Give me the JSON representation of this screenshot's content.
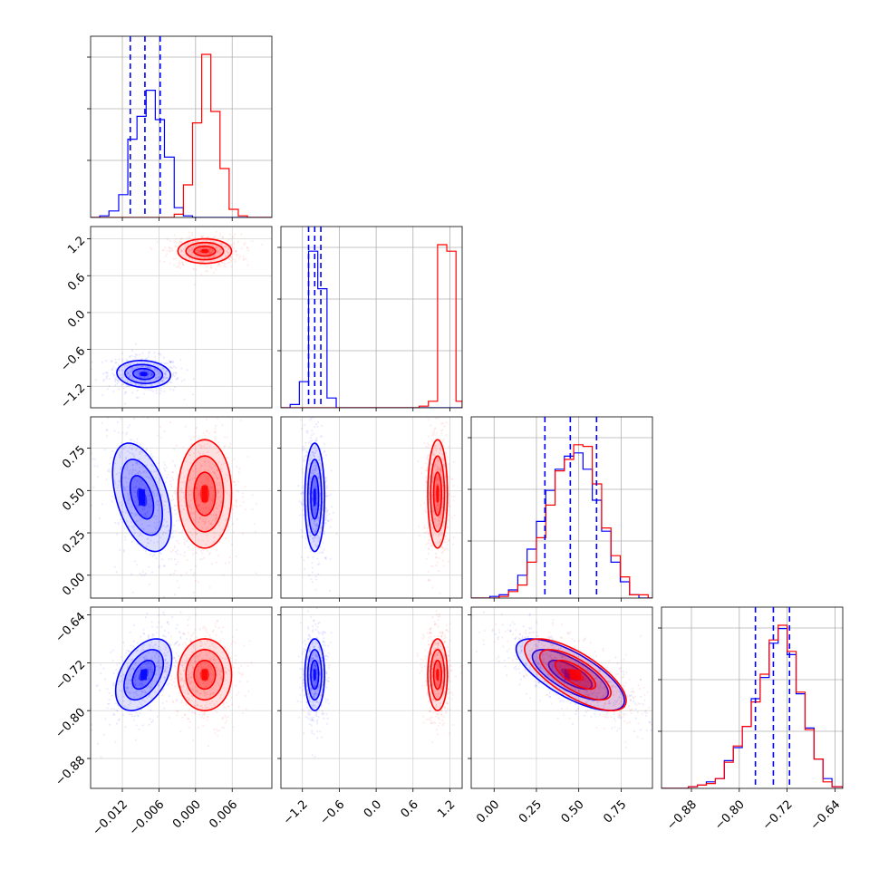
{
  "chart_data": {
    "type": "corner",
    "grid": true,
    "colors": {
      "blue": "#0000ff",
      "red": "#ff0000"
    },
    "series": [
      {
        "color": "#0000ff",
        "quantiles_p1": [
          -0.0107,
          -0.0083,
          -0.0058
        ],
        "quantiles_p4": [
          -0.773,
          -0.743,
          -0.716
        ],
        "means": [
          -0.0085,
          -1.0,
          0.45,
          -0.74
        ]
      },
      {
        "color": "#ff0000",
        "means": [
          0.0015,
          1.0,
          0.48,
          -0.74
        ]
      }
    ],
    "params": [
      {
        "lim": [
          -0.0172,
          0.0125
        ],
        "ticks": [
          -0.012,
          -0.006,
          0.0,
          0.006
        ],
        "tick_labels": [
          "−0.012",
          "−0.006",
          "0.000",
          "0.006"
        ]
      },
      {
        "lim": [
          -1.55,
          1.4
        ],
        "ticks": [
          -1.2,
          -0.6,
          0.0,
          0.6,
          1.2
        ],
        "tick_labels": [
          "−1.2",
          "−0.6",
          "0.0",
          "0.6",
          "1.2"
        ]
      },
      {
        "lim": [
          -0.135,
          0.935
        ],
        "ticks": [
          0.0,
          0.25,
          0.5,
          0.75
        ],
        "tick_labels": [
          "0.00",
          "0.25",
          "0.50",
          "0.75"
        ]
      },
      {
        "lim": [
          -0.93,
          -0.627
        ],
        "ticks": [
          -0.88,
          -0.8,
          -0.72,
          -0.64
        ],
        "tick_labels": [
          "−0.88",
          "−0.80",
          "−0.72",
          "−0.64"
        ]
      }
    ],
    "histograms": [
      {
        "param": 0,
        "edges": [
          -0.0172,
          -0.0157,
          -0.0142,
          -0.0126,
          -0.0111,
          -0.0096,
          -0.0081,
          -0.0066,
          -0.0051,
          -0.0035,
          -0.002,
          -0.0005,
          0.001,
          0.0025,
          0.004,
          0.0055,
          0.007,
          0.0085,
          0.0101,
          0.0116,
          0.0125
        ],
        "blue": [
          0,
          0.01,
          0.04,
          0.14,
          0.48,
          0.62,
          0.78,
          0.6,
          0.37,
          0.06,
          0.01,
          0,
          0,
          0,
          0,
          0,
          0,
          0,
          0,
          0
        ],
        "red": [
          0,
          0,
          0,
          0,
          0,
          0,
          0,
          0,
          0,
          0.02,
          0.2,
          0.58,
          1.0,
          0.65,
          0.3,
          0.05,
          0.01,
          0,
          0,
          0
        ]
      },
      {
        "param": 1,
        "edges": [
          -1.55,
          -1.4,
          -1.25,
          -1.1,
          -0.95,
          -0.8,
          -0.65,
          -0.5,
          -0.35,
          -0.2,
          -0.05,
          0.1,
          0.25,
          0.4,
          0.55,
          0.7,
          0.85,
          1.0,
          1.15,
          1.3,
          1.4
        ],
        "blue": [
          0,
          0.02,
          0.16,
          0.96,
          0.73,
          0.06,
          0,
          0,
          0,
          0,
          0,
          0,
          0,
          0,
          0,
          0,
          0,
          0,
          0,
          0
        ],
        "red": [
          0,
          0,
          0,
          0,
          0,
          0,
          0,
          0,
          0,
          0,
          0,
          0,
          0,
          0,
          0,
          0.01,
          0.04,
          1.0,
          0.96,
          0.04
        ]
      },
      {
        "param": 2,
        "edges": [
          -0.135,
          -0.08,
          -0.025,
          0.03,
          0.085,
          0.14,
          0.195,
          0.25,
          0.305,
          0.36,
          0.415,
          0.47,
          0.525,
          0.58,
          0.635,
          0.69,
          0.745,
          0.8,
          0.855,
          0.91,
          0.935
        ],
        "blue": [
          0,
          0,
          0.01,
          0.02,
          0.05,
          0.14,
          0.3,
          0.47,
          0.66,
          0.79,
          0.87,
          0.89,
          0.79,
          0.6,
          0.41,
          0.22,
          0.1,
          0.02,
          0,
          0
        ],
        "red": [
          0,
          0,
          0,
          0.01,
          0.04,
          0.08,
          0.22,
          0.37,
          0.57,
          0.78,
          0.85,
          0.94,
          0.93,
          0.7,
          0.43,
          0.26,
          0.13,
          0.02,
          0.02,
          0
        ]
      },
      {
        "param": 3,
        "edges": [
          -0.93,
          -0.915,
          -0.9,
          -0.885,
          -0.87,
          -0.855,
          -0.84,
          -0.825,
          -0.81,
          -0.795,
          -0.78,
          -0.765,
          -0.75,
          -0.735,
          -0.72,
          -0.705,
          -0.69,
          -0.675,
          -0.66,
          -0.645,
          -0.627
        ],
        "blue": [
          0,
          0,
          0,
          0.01,
          0.02,
          0.04,
          0.06,
          0.17,
          0.25,
          0.38,
          0.55,
          0.68,
          0.89,
          0.98,
          0.82,
          0.58,
          0.37,
          0.18,
          0.06,
          0.01
        ],
        "red": [
          0,
          0,
          0,
          0.01,
          0.02,
          0.03,
          0.06,
          0.16,
          0.26,
          0.38,
          0.53,
          0.7,
          0.91,
          1.0,
          0.84,
          0.59,
          0.36,
          0.18,
          0.04,
          0.01
        ]
      }
    ],
    "scatter_panels": [
      {
        "row": 1,
        "col": 0,
        "blue": {
          "center": [
            -0.0085,
            -1.0
          ],
          "sd": [
            0.0022,
            0.11
          ],
          "corr": -0.1
        },
        "red": {
          "center": [
            0.0015,
            1.0
          ],
          "sd": [
            0.0022,
            0.1
          ],
          "corr": 0.0
        }
      },
      {
        "row": 2,
        "col": 0,
        "blue": {
          "center": [
            -0.0088,
            0.46
          ],
          "sd": [
            0.0024,
            0.16
          ],
          "corr": -0.45
        },
        "red": {
          "center": [
            0.0015,
            0.48
          ],
          "sd": [
            0.0022,
            0.16
          ],
          "corr": 0.0
        }
      },
      {
        "row": 2,
        "col": 1,
        "blue": {
          "center": [
            -1.0,
            0.46
          ],
          "sd": [
            0.08,
            0.16
          ],
          "corr": 0.0
        },
        "red": {
          "center": [
            1.0,
            0.48
          ],
          "sd": [
            0.08,
            0.16
          ],
          "corr": 0.0
        }
      },
      {
        "row": 3,
        "col": 0,
        "blue": {
          "center": [
            -0.0085,
            -0.74
          ],
          "sd": [
            0.0023,
            0.03
          ],
          "corr": 0.45
        },
        "red": {
          "center": [
            0.0015,
            -0.74
          ],
          "sd": [
            0.0022,
            0.03
          ],
          "corr": 0.0
        }
      },
      {
        "row": 3,
        "col": 1,
        "blue": {
          "center": [
            -1.0,
            -0.74
          ],
          "sd": [
            0.08,
            0.03
          ],
          "corr": 0.0
        },
        "red": {
          "center": [
            1.0,
            -0.74
          ],
          "sd": [
            0.08,
            0.03
          ],
          "corr": 0.0
        }
      },
      {
        "row": 3,
        "col": 2,
        "blue": {
          "center": [
            0.45,
            -0.74
          ],
          "sd": [
            0.16,
            0.03
          ],
          "corr": -0.72
        },
        "red": {
          "center": [
            0.48,
            -0.74
          ],
          "sd": [
            0.15,
            0.03
          ],
          "corr": -0.72
        }
      }
    ]
  }
}
